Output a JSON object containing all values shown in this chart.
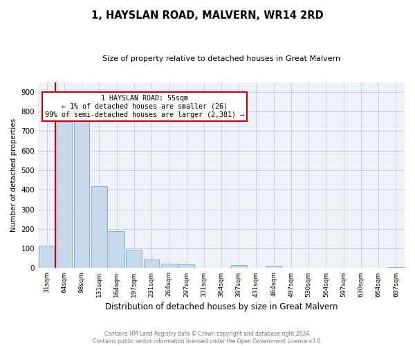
{
  "title": "1, HAYSLAN ROAD, MALVERN, WR14 2RD",
  "subtitle": "Size of property relative to detached houses in Great Malvern",
  "xlabel": "Distribution of detached houses by size in Great Malvern",
  "ylabel": "Number of detached properties",
  "bar_color": "#c8d8eb",
  "bar_edge_color": "#8ab0cc",
  "categories": [
    "31sqm",
    "64sqm",
    "98sqm",
    "131sqm",
    "164sqm",
    "197sqm",
    "231sqm",
    "264sqm",
    "297sqm",
    "331sqm",
    "364sqm",
    "397sqm",
    "431sqm",
    "464sqm",
    "497sqm",
    "530sqm",
    "564sqm",
    "597sqm",
    "630sqm",
    "664sqm",
    "697sqm"
  ],
  "values": [
    113,
    748,
    750,
    420,
    190,
    93,
    45,
    22,
    20,
    0,
    0,
    15,
    0,
    12,
    0,
    0,
    0,
    0,
    0,
    0,
    5
  ],
  "ylim": [
    0,
    950
  ],
  "yticks": [
    0,
    100,
    200,
    300,
    400,
    500,
    600,
    700,
    800,
    900
  ],
  "red_line_x": 0.5,
  "annotation_text_line1": "1 HAYSLAN ROAD: 55sqm",
  "annotation_text_line2": "← 1% of detached houses are smaller (26)",
  "annotation_text_line3": "99% of semi-detached houses are larger (2,381) →",
  "annotation_box_color": "#cc0000",
  "footer_line1": "Contains HM Land Registry data © Crown copyright and database right 2024.",
  "footer_line2": "Contains public sector information licensed under the Open Government Licence v3.0.",
  "plot_bg_color": "#eef2f7",
  "grid_color": "#c5cfe0"
}
